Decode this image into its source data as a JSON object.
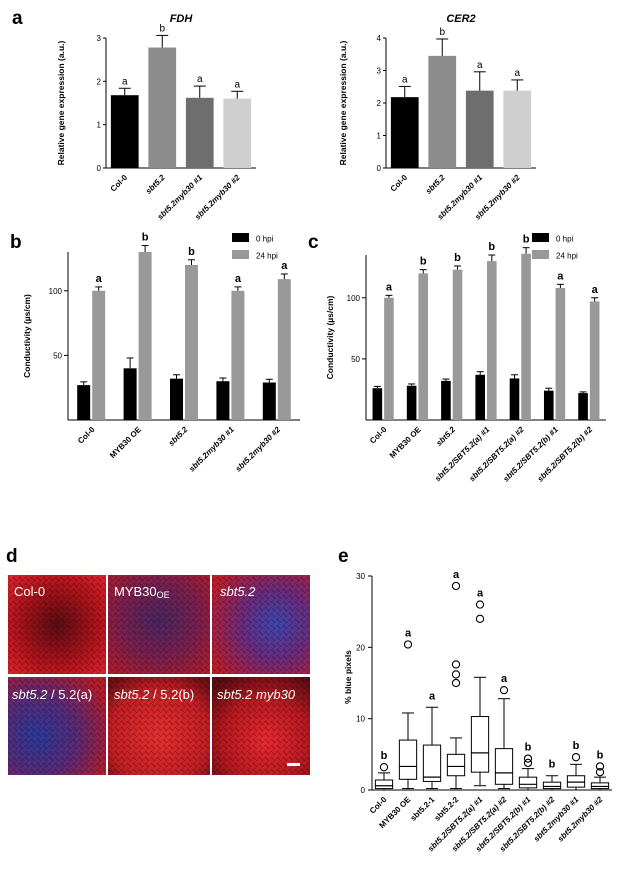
{
  "panels": {
    "a": "a",
    "b": "b",
    "c": "c",
    "d": "d",
    "e": "e"
  },
  "chart_data": [
    {
      "id": "a-fdh",
      "type": "bar",
      "title": "FDH",
      "ylabel": "Relative gene expression (a.u.)",
      "ylim": [
        0,
        3
      ],
      "yticks": [
        "0",
        "1",
        "2",
        "3"
      ],
      "categories": [
        "Col-0",
        "sbt5.2",
        "sbt5.2myb30 #1",
        "sbt5.2myb30 #2"
      ],
      "italic": [
        false,
        true,
        true,
        true
      ],
      "values": [
        1.68,
        2.78,
        1.62,
        1.6
      ],
      "errors": [
        0.16,
        0.28,
        0.27,
        0.17
      ],
      "letters": [
        "a",
        "b",
        "a",
        "a"
      ],
      "colors": [
        "#000000",
        "#8c8c8c",
        "#6e6e6e",
        "#cfcfcf"
      ]
    },
    {
      "id": "a-cer2",
      "type": "bar",
      "title": "CER2",
      "ylabel": "Relative gene expression (a.u.)",
      "ylim": [
        0,
        4
      ],
      "yticks": [
        "0",
        "1",
        "2",
        "3",
        "4"
      ],
      "categories": [
        "Col-0",
        "sbt5.2",
        "sbt5.2myb30 #1",
        "sbt5.2myb30 #2"
      ],
      "italic": [
        false,
        true,
        true,
        true
      ],
      "values": [
        2.18,
        3.45,
        2.38,
        2.38
      ],
      "errors": [
        0.33,
        0.52,
        0.58,
        0.33
      ],
      "letters": [
        "a",
        "b",
        "a",
        "a"
      ],
      "colors": [
        "#000000",
        "#8c8c8c",
        "#6e6e6e",
        "#cfcfcf"
      ]
    },
    {
      "id": "b",
      "type": "bar",
      "ylabel": "Conductivity (µs/cm)",
      "ylim": [
        0,
        130
      ],
      "yticks": [
        "50",
        "100"
      ],
      "ytickvals": [
        50,
        100
      ],
      "categories": [
        "Col-0",
        "MYB30 OE",
        "sbt5.2",
        "sbt5.2myb30 #1",
        "sbt5.2myb30 #2"
      ],
      "italic": [
        false,
        false,
        true,
        true,
        true
      ],
      "legend": [
        "0 hpi",
        "24 hpi"
      ],
      "series": [
        {
          "name": "0 hpi",
          "color": "#000000",
          "values": [
            27,
            40,
            32,
            30,
            29
          ],
          "errors": [
            2.5,
            8,
            3,
            2.5,
            2.5
          ]
        },
        {
          "name": "24 hpi",
          "color": "#999999",
          "values": [
            100,
            130,
            120,
            100,
            109
          ],
          "errors": [
            3,
            5,
            4,
            3,
            4
          ]
        }
      ],
      "letters": [
        "a",
        "b",
        "b",
        "a",
        "a"
      ]
    },
    {
      "id": "c",
      "type": "bar",
      "ylabel": "Conductivity (µs/cm)",
      "ylim": [
        0,
        135
      ],
      "yticks": [
        "50",
        "100"
      ],
      "ytickvals": [
        50,
        100
      ],
      "categories": [
        "Col-0",
        "MYB30 OE",
        "sbt5.2",
        "sbt5.2/SBT5.2(a) #1",
        "sbt5.2/SBT5.2(a) #2",
        "sbt5.2/SBT5.2(b) #1",
        "sbt5.2/SBT5.2(b) #2"
      ],
      "italic": [
        false,
        false,
        true,
        true,
        true,
        true,
        true
      ],
      "legend": [
        "0 hpi",
        "24 hpi"
      ],
      "series": [
        {
          "name": "0 hpi",
          "color": "#000000",
          "values": [
            26,
            28,
            32,
            37,
            34,
            24,
            22
          ],
          "errors": [
            1.5,
            1.5,
            1.5,
            2.5,
            3,
            2,
            1
          ]
        },
        {
          "name": "24 hpi",
          "color": "#999999",
          "values": [
            100,
            120,
            123,
            130,
            136,
            108,
            97
          ],
          "errors": [
            2,
            3,
            3,
            5,
            5,
            3,
            3
          ]
        }
      ],
      "letters": [
        "a",
        "b",
        "b",
        "b",
        "b",
        "a",
        "a"
      ]
    },
    {
      "id": "e",
      "type": "box",
      "ylabel": "% blue pixels",
      "ylim": [
        0,
        30
      ],
      "yticks": [
        "0",
        "10",
        "20",
        "30"
      ],
      "ytickvals": [
        0,
        10,
        20,
        30
      ],
      "categories": [
        "Col-0",
        "MYB30 OE",
        "sbt5.2-1",
        "sbt5.2-2",
        "sbt5.2/SBT5.2(a) #1",
        "sbt5.2/SBT5.2(a) #2",
        "sbt5.2/SBT5.2(b) #1",
        "sbt5.2/SBT5.2(b) #2",
        "sbt5.2myb30 #1",
        "sbt5.2myb30 #2"
      ],
      "italic": [
        false,
        false,
        false,
        false,
        true,
        true,
        true,
        true,
        true,
        true
      ],
      "boxes": [
        {
          "min": 0.0,
          "q1": 0.2,
          "median": 0.6,
          "q3": 1.4,
          "max": 2.4,
          "outliers": [
            3.2
          ]
        },
        {
          "min": 0.2,
          "q1": 1.5,
          "median": 3.3,
          "q3": 7.0,
          "max": 10.8,
          "outliers": [
            20.4
          ]
        },
        {
          "min": 0.2,
          "q1": 1.2,
          "median": 1.8,
          "q3": 6.3,
          "max": 11.6,
          "outliers": []
        },
        {
          "min": 0.2,
          "q1": 2.0,
          "median": 3.3,
          "q3": 5.0,
          "max": 7.3,
          "outliers": [
            15.0,
            16.2,
            17.6,
            28.6
          ]
        },
        {
          "min": 0.6,
          "q1": 2.5,
          "median": 5.2,
          "q3": 10.3,
          "max": 15.8,
          "outliers": [
            24.0,
            26.0
          ]
        },
        {
          "min": 0.2,
          "q1": 0.8,
          "median": 2.4,
          "q3": 5.8,
          "max": 12.8,
          "outliers": [
            14.0
          ]
        },
        {
          "min": 0.0,
          "q1": 0.3,
          "median": 0.8,
          "q3": 1.8,
          "max": 3.0,
          "outliers": [
            3.8,
            4.4
          ]
        },
        {
          "min": 0.0,
          "q1": 0.2,
          "median": 0.5,
          "q3": 1.1,
          "max": 2.0,
          "outliers": []
        },
        {
          "min": 0.0,
          "q1": 0.4,
          "median": 1.1,
          "q3": 2.0,
          "max": 3.6,
          "outliers": [
            4.6
          ]
        },
        {
          "min": 0.0,
          "q1": 0.2,
          "median": 0.5,
          "q3": 1.0,
          "max": 1.8,
          "outliers": [
            2.5,
            3.3
          ]
        }
      ],
      "letters": [
        "b",
        "a",
        "a",
        "a",
        "a",
        "a",
        "b",
        "b",
        "b",
        "b"
      ]
    }
  ],
  "micrographs": {
    "labels": [
      "Col-0",
      "MYB30",
      "sbt5.2",
      "sbt5.2",
      "sbt5.2",
      "sbt5.2 myb30"
    ],
    "subscript_OE": "OE",
    "complement_a": " / 5.2(a)",
    "complement_b": " / 5.2(b)",
    "colors": {
      "red": "#d21c24",
      "blue": "#3a3fa0",
      "dark": "#3a0a10"
    }
  }
}
